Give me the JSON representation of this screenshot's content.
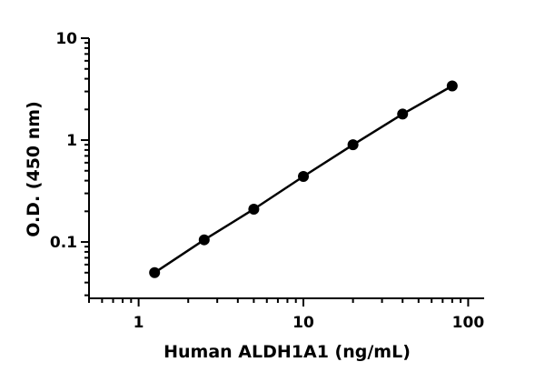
{
  "chart_data": {
    "type": "scatter",
    "title": "",
    "xlabel": "Human ALDH1A1 (ng/mL)",
    "ylabel": "O.D. (450 nm)",
    "x_scale": "log",
    "y_scale": "log",
    "xlim": [
      0.5,
      125
    ],
    "ylim": [
      0.028,
      10
    ],
    "x_ticks": [
      {
        "value": 1,
        "label": "1"
      },
      {
        "value": 10,
        "label": "10"
      },
      {
        "value": 100,
        "label": "100"
      }
    ],
    "y_ticks": [
      {
        "value": 0.1,
        "label": "0.1"
      },
      {
        "value": 1,
        "label": "1"
      },
      {
        "value": 10,
        "label": "10"
      }
    ],
    "grid": false,
    "legend": "none",
    "color": "#000000",
    "series": [
      {
        "x": [
          1.25,
          2.5,
          5,
          10,
          20,
          40,
          80
        ],
        "y": [
          0.05,
          0.105,
          0.21,
          0.44,
          0.9,
          1.8,
          3.4
        ],
        "marker": "circle",
        "line": true
      }
    ]
  }
}
